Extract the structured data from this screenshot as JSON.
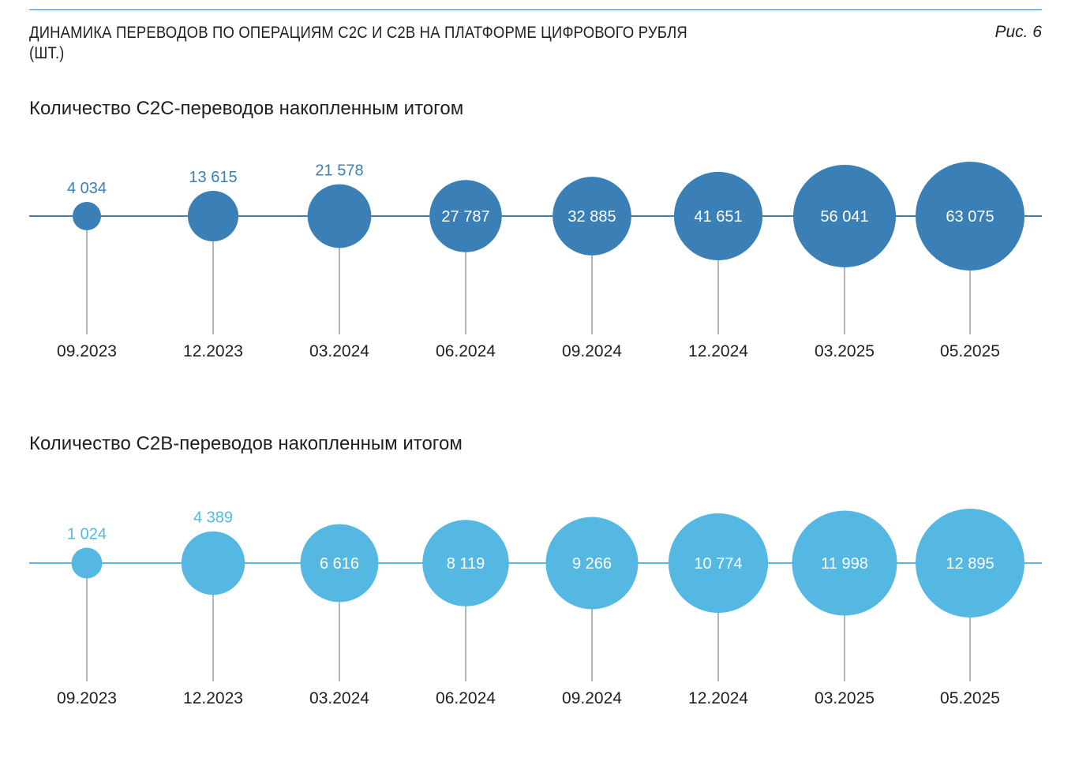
{
  "figure": {
    "title": "ДИНАМИКА ПЕРЕВОДОВ ПО ОПЕРАЦИЯМ C2C И C2B НА ПЛАТФОРМЕ ЦИФРОВОГО РУБЛЯ (ШТ.)",
    "number": "Рис. 6"
  },
  "chart_data": [
    {
      "type": "scatter",
      "title": "Количество C2C-переводов накопленным итогом",
      "categories": [
        "09.2023",
        "12.2023",
        "03.2024",
        "06.2024",
        "09.2024",
        "12.2024",
        "03.2025",
        "05.2025"
      ],
      "values": [
        4034,
        13615,
        21578,
        27787,
        32885,
        41651,
        56041,
        63075
      ],
      "value_labels": [
        "4 034",
        "13 615",
        "21 578",
        "27 787",
        "32 885",
        "41 651",
        "56 041",
        "63 075"
      ],
      "color": "#3a7fb5"
    },
    {
      "type": "scatter",
      "title": "Количество C2B-переводов накопленным итогом",
      "categories": [
        "09.2023",
        "12.2023",
        "03.2024",
        "06.2024",
        "09.2024",
        "12.2024",
        "03.2025",
        "05.2025"
      ],
      "values": [
        1024,
        4389,
        6616,
        8119,
        9266,
        10774,
        11998,
        12895
      ],
      "value_labels": [
        "1 024",
        "4 389",
        "6 616",
        "8 119",
        "9 266",
        "10 774",
        "11 998",
        "12 895"
      ],
      "color": "#55b8e2"
    }
  ]
}
